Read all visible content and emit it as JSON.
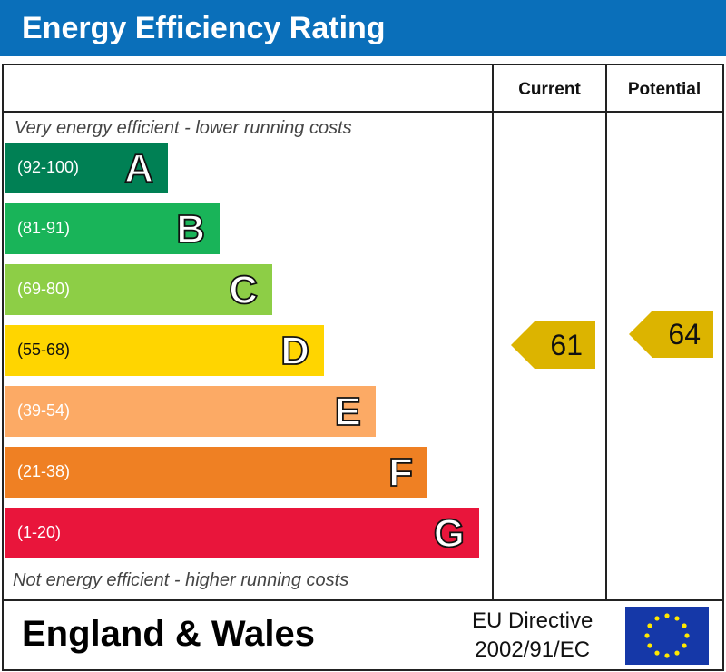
{
  "title": "Energy Efficiency Rating",
  "columns": {
    "current": "Current",
    "potential": "Potential"
  },
  "top_note": "Very energy efficient - lower running costs",
  "bottom_note": "Not energy efficient - higher running costs",
  "footer": {
    "country": "England & Wales",
    "directive_line1": "EU Directive",
    "directive_line2": "2002/91/EC",
    "flag_icon": "eu-flag-icon"
  },
  "chart_data": {
    "type": "bar",
    "bands": [
      {
        "range": "(92-100)",
        "letter": "A",
        "min": 92,
        "max": 100,
        "color": "#008054"
      },
      {
        "range": "(81-91)",
        "letter": "B",
        "min": 81,
        "max": 91,
        "color": "#19b459"
      },
      {
        "range": "(69-80)",
        "letter": "C",
        "min": 69,
        "max": 80,
        "color": "#8dce46"
      },
      {
        "range": "(55-68)",
        "letter": "D",
        "min": 55,
        "max": 68,
        "color": "#ffd500"
      },
      {
        "range": "(39-54)",
        "letter": "E",
        "min": 39,
        "max": 54,
        "color": "#fcaa65"
      },
      {
        "range": "(21-38)",
        "letter": "F",
        "min": 21,
        "max": 38,
        "color": "#ef8023"
      },
      {
        "range": "(1-20)",
        "letter": "G",
        "min": 1,
        "max": 20,
        "color": "#e9153b"
      }
    ],
    "current": {
      "value": 61,
      "band": "D",
      "color": "#dcb400"
    },
    "potential": {
      "value": 64,
      "band": "D",
      "color": "#dcb400"
    }
  }
}
